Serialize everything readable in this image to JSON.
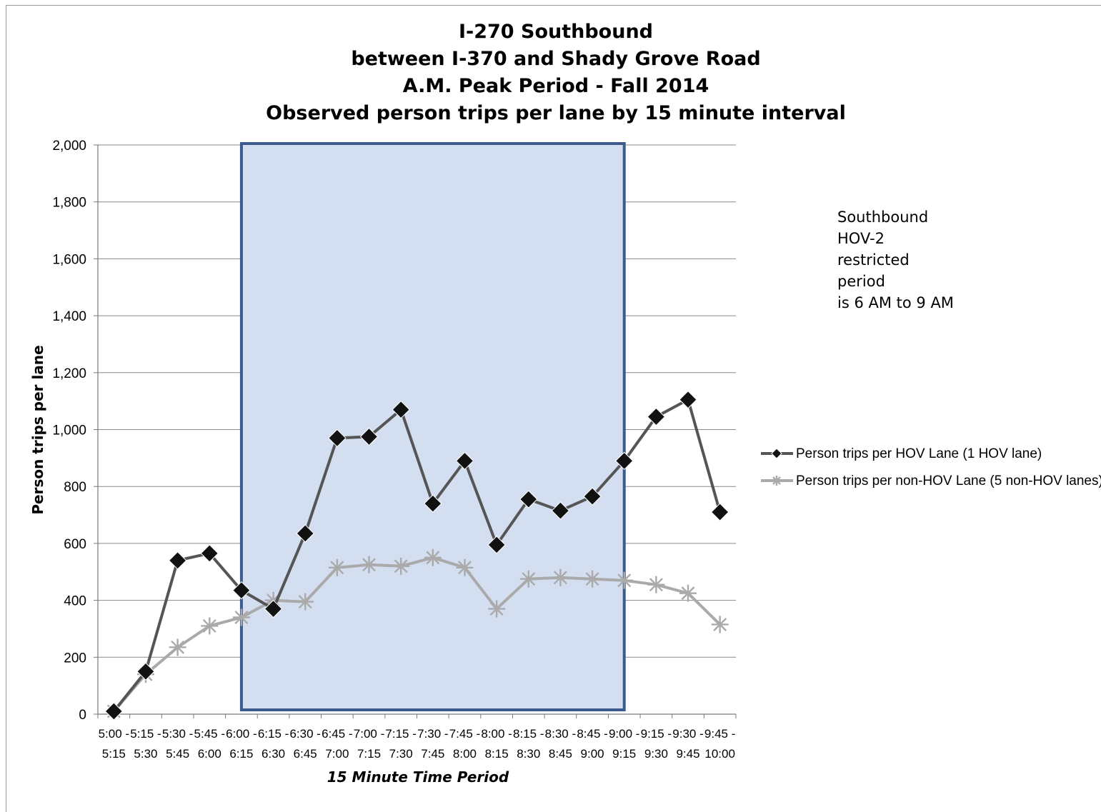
{
  "chart_data": {
    "type": "line",
    "title": [
      "I-270 Southbound",
      "between I-370 and Shady Grove Road",
      "A.M. Peak Period - Fall 2014",
      "Observed person trips per lane by 15 minute interval"
    ],
    "xlabel": "15 Minute Time Period",
    "ylabel": "Person trips per lane",
    "ylim": [
      0,
      2000
    ],
    "yticks": [
      "0",
      "200",
      "400",
      "600",
      "800",
      "1,000",
      "1,200",
      "1,400",
      "1,600",
      "1,800",
      "2,000"
    ],
    "grid": true,
    "legend_position": "right",
    "categories": [
      [
        "5:00 -",
        "5:15"
      ],
      [
        "5:15 -",
        "5:30"
      ],
      [
        "5:30 -",
        "5:45"
      ],
      [
        "5:45 -",
        "6:00"
      ],
      [
        "6:00 -",
        "6:15"
      ],
      [
        "6:15 -",
        "6:30"
      ],
      [
        "6:30 -",
        "6:45"
      ],
      [
        "6:45 -",
        "7:00"
      ],
      [
        "7:00 -",
        "7:15"
      ],
      [
        "7:15 -",
        "7:30"
      ],
      [
        "7:30 -",
        "7:45"
      ],
      [
        "7:45 -",
        "8:00"
      ],
      [
        "8:00 -",
        "8:15"
      ],
      [
        "8:15 -",
        "8:30"
      ],
      [
        "8:30 -",
        "8:45"
      ],
      [
        "8:45 -",
        "9:00"
      ],
      [
        "9:00 -",
        "9:15"
      ],
      [
        "9:15 -",
        "9:30"
      ],
      [
        "9:30 -",
        "9:45"
      ],
      [
        "9:45 -",
        "10:00"
      ]
    ],
    "series": [
      {
        "name": "Person trips per HOV Lane (1 HOV lane)",
        "color": "#555555",
        "marker": "diamond",
        "marker_color": "#111111",
        "values": [
          10,
          150,
          540,
          565,
          435,
          370,
          635,
          970,
          975,
          1070,
          740,
          890,
          595,
          755,
          715,
          765,
          890,
          1045,
          1105,
          710
        ]
      },
      {
        "name": "Person trips per non-HOV Lane (5 non-HOV lanes)",
        "color": "#aaaaaa",
        "marker": "star",
        "marker_color": "#aaaaaa",
        "values": [
          10,
          140,
          235,
          310,
          340,
          400,
          395,
          515,
          525,
          520,
          550,
          515,
          370,
          475,
          480,
          475,
          470,
          455,
          425,
          315
        ]
      }
    ],
    "highlight": {
      "label": "HOV-2 restricted period",
      "from_category": "6:00 - 6:15",
      "to_category": "9:00 - 9:15",
      "fill_color": "#d3dff0",
      "border_color": "#3c5a8c"
    },
    "annotation": [
      "Southbound",
      "HOV-2",
      "restricted",
      "period",
      "is 6 AM to 9 AM"
    ]
  }
}
